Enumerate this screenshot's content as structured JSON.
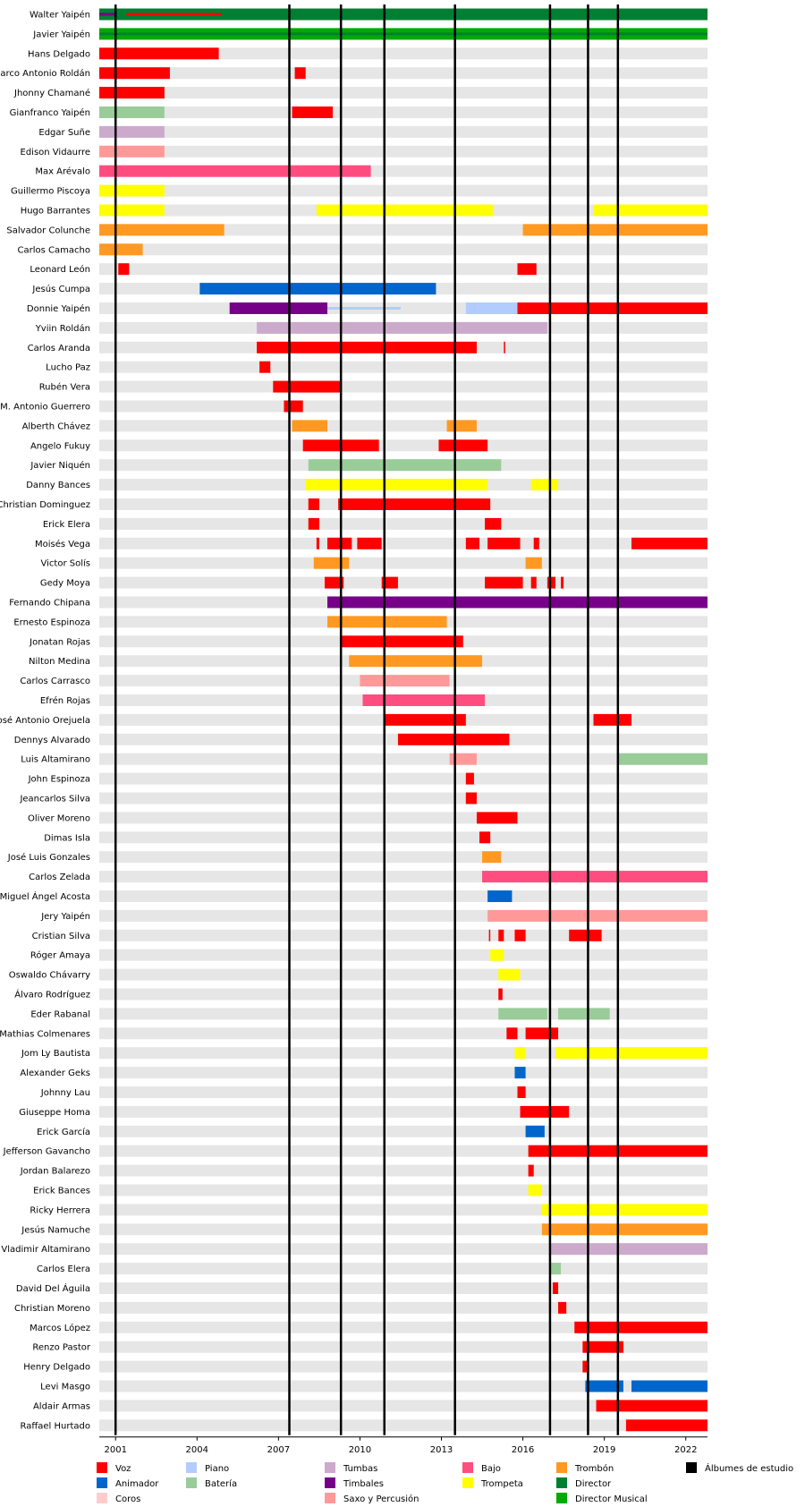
{
  "chart_data": {
    "type": "timeline",
    "title": "",
    "x_range": [
      2000.4,
      2022.8
    ],
    "x_ticks": [
      "2001",
      "2004",
      "2007",
      "2010",
      "2013",
      "2016",
      "2019",
      "2022"
    ],
    "album_lines": [
      2001,
      2007.4,
      2009.3,
      2010.9,
      2013.5,
      2017,
      2018.4,
      2019.5
    ],
    "colors": {
      "Voz": "#ff0000",
      "Animador": "#0066cc",
      "Coros": "#ffcccc",
      "Piano": "#b3ccff",
      "Bateria": "#99cc99",
      "Tumbas": "#ccaacc",
      "Timbales": "#770088",
      "Saxo": "#ff9999",
      "Bajo": "#ff4d80",
      "Trompeta": "#ffff00",
      "Trombon": "#ff9922",
      "Director": "#007f33",
      "DirectorMusical": "#00aa00",
      "Albumes": "#000000"
    },
    "legend": [
      {
        "key": "Voz",
        "label": "Voz"
      },
      {
        "key": "Animador",
        "label": "Animador"
      },
      {
        "key": "Coros",
        "label": "Coros"
      },
      {
        "key": "Piano",
        "label": "Piano"
      },
      {
        "key": "Bateria",
        "label": "Batería"
      },
      {
        "key": "Tumbas",
        "label": "Tumbas"
      },
      {
        "key": "Timbales",
        "label": "Timbales"
      },
      {
        "key": "Saxo",
        "label": "Saxo y Percusión"
      },
      {
        "key": "Bajo",
        "label": "Bajo"
      },
      {
        "key": "Trompeta",
        "label": "Trompeta"
      },
      {
        "key": "Trombon",
        "label": "Trombón"
      },
      {
        "key": "Director",
        "label": "Director"
      },
      {
        "key": "DirectorMusical",
        "label": "Director Musical"
      },
      {
        "key": "Albumes",
        "label": "Álbumes de estudio"
      }
    ],
    "members": [
      {
        "name": "Walter Yaipén",
        "bars": [
          {
            "r": "Director",
            "s": 2000.4,
            "e": 2022.8
          },
          {
            "r": "Timbales",
            "s": 2000.4,
            "e": 2001,
            "thin": true
          },
          {
            "r": "Voz",
            "s": 2001.4,
            "e": 2004.9,
            "thin": true
          }
        ]
      },
      {
        "name": "Javier Yaipén",
        "bars": [
          {
            "r": "DirectorMusical",
            "s": 2000.4,
            "e": 2022.8
          },
          {
            "r": "Director",
            "s": 2000.4,
            "e": 2022.8,
            "thin": true
          }
        ]
      },
      {
        "name": "Hans Delgado",
        "bars": [
          {
            "r": "Voz",
            "s": 2000.4,
            "e": 2004.8
          }
        ]
      },
      {
        "name": "Marco Antonio Roldán",
        "bars": [
          {
            "r": "Voz",
            "s": 2000.4,
            "e": 2003
          },
          {
            "r": "Voz",
            "s": 2007.6,
            "e": 2008
          }
        ]
      },
      {
        "name": "Jhonny Chamané",
        "bars": [
          {
            "r": "Voz",
            "s": 2000.4,
            "e": 2002.8
          }
        ]
      },
      {
        "name": "Gianfranco Yaipén",
        "bars": [
          {
            "r": "Bateria",
            "s": 2000.4,
            "e": 2002.8
          },
          {
            "r": "Voz",
            "s": 2007.5,
            "e": 2009
          }
        ]
      },
      {
        "name": "Edgar Suñe",
        "bars": [
          {
            "r": "Tumbas",
            "s": 2000.4,
            "e": 2002.8
          }
        ]
      },
      {
        "name": "Edison Vidaurre",
        "bars": [
          {
            "r": "Saxo",
            "s": 2000.4,
            "e": 2002.8
          }
        ]
      },
      {
        "name": "Max Arévalo",
        "bars": [
          {
            "r": "Bajo",
            "s": 2000.4,
            "e": 2010.4
          }
        ]
      },
      {
        "name": "Guillermo Piscoya",
        "bars": [
          {
            "r": "Trompeta",
            "s": 2000.4,
            "e": 2002.8
          }
        ]
      },
      {
        "name": "Hugo Barrantes",
        "bars": [
          {
            "r": "Trompeta",
            "s": 2000.4,
            "e": 2002.8
          },
          {
            "r": "Trompeta",
            "s": 2008.4,
            "e": 2014.9
          },
          {
            "r": "Trompeta",
            "s": 2018.6,
            "e": 2022.8
          }
        ]
      },
      {
        "name": "Salvador Colunche",
        "bars": [
          {
            "r": "Trombon",
            "s": 2000.4,
            "e": 2005
          },
          {
            "r": "Trombon",
            "s": 2016,
            "e": 2022.8
          }
        ]
      },
      {
        "name": "Carlos Camacho",
        "bars": [
          {
            "r": "Trombon",
            "s": 2000.4,
            "e": 2002
          }
        ]
      },
      {
        "name": "Leonard León",
        "bars": [
          {
            "r": "Voz",
            "s": 2001.1,
            "e": 2001.5
          },
          {
            "r": "Voz",
            "s": 2015.8,
            "e": 2016.5
          }
        ]
      },
      {
        "name": "Jesús Cumpa",
        "bars": [
          {
            "r": "Animador",
            "s": 2004.1,
            "e": 2012.8
          }
        ]
      },
      {
        "name": "Donnie Yaipén",
        "bars": [
          {
            "r": "Timbales",
            "s": 2005.2,
            "e": 2008.8
          },
          {
            "r": "Piano",
            "s": 2008.8,
            "e": 2011.5,
            "thin": true
          },
          {
            "r": "Piano",
            "s": 2013.9,
            "e": 2015.8
          },
          {
            "r": "Voz",
            "s": 2015.8,
            "e": 2022.8
          }
        ]
      },
      {
        "name": "Yviin Roldán",
        "bars": [
          {
            "r": "Tumbas",
            "s": 2006.2,
            "e": 2016.9
          }
        ]
      },
      {
        "name": "Carlos Aranda",
        "bars": [
          {
            "r": "Voz",
            "s": 2006.2,
            "e": 2014.3
          },
          {
            "r": "Voz",
            "s": 2015.3,
            "e": 2015.35
          }
        ]
      },
      {
        "name": "Lucho Paz",
        "bars": [
          {
            "r": "Voz",
            "s": 2006.3,
            "e": 2006.7
          }
        ]
      },
      {
        "name": "Rubén Vera",
        "bars": [
          {
            "r": "Voz",
            "s": 2006.8,
            "e": 2009.3
          }
        ]
      },
      {
        "name": "M. Antonio Guerrero",
        "bars": [
          {
            "r": "Voz",
            "s": 2007.2,
            "e": 2007.9
          }
        ]
      },
      {
        "name": "Alberth Chávez",
        "bars": [
          {
            "r": "Trombon",
            "s": 2007.5,
            "e": 2008.8
          },
          {
            "r": "Trombon",
            "s": 2013.2,
            "e": 2014.3
          }
        ]
      },
      {
        "name": "Angelo Fukuy",
        "bars": [
          {
            "r": "Voz",
            "s": 2007.9,
            "e": 2010.7
          },
          {
            "r": "Voz",
            "s": 2012.9,
            "e": 2014.7
          }
        ]
      },
      {
        "name": "Javier Niquén",
        "bars": [
          {
            "r": "Bateria",
            "s": 2008.1,
            "e": 2015.2
          }
        ]
      },
      {
        "name": "Danny Bances",
        "bars": [
          {
            "r": "Trompeta",
            "s": 2008,
            "e": 2014.7
          },
          {
            "r": "Trompeta",
            "s": 2016.3,
            "e": 2017.3
          }
        ]
      },
      {
        "name": "Christian Dominguez",
        "bars": [
          {
            "r": "Voz",
            "s": 2008.1,
            "e": 2008.5
          },
          {
            "r": "Voz",
            "s": 2009.2,
            "e": 2014.8
          }
        ]
      },
      {
        "name": "Erick Elera",
        "bars": [
          {
            "r": "Voz",
            "s": 2008.1,
            "e": 2008.5
          },
          {
            "r": "Voz",
            "s": 2014.6,
            "e": 2015.2
          }
        ]
      },
      {
        "name": "Moisés Vega",
        "bars": [
          {
            "r": "Voz",
            "s": 2008.4,
            "e": 2008.5
          },
          {
            "r": "Voz",
            "s": 2008.8,
            "e": 2009.7
          },
          {
            "r": "Voz",
            "s": 2009.9,
            "e": 2010.8
          },
          {
            "r": "Voz",
            "s": 2013.9,
            "e": 2014.4
          },
          {
            "r": "Voz",
            "s": 2014.7,
            "e": 2015.9
          },
          {
            "r": "Voz",
            "s": 2016.4,
            "e": 2016.6
          },
          {
            "r": "Voz",
            "s": 2020,
            "e": 2022.8
          }
        ]
      },
      {
        "name": "Victor Solís",
        "bars": [
          {
            "r": "Trombon",
            "s": 2008.3,
            "e": 2009.6
          },
          {
            "r": "Trombon",
            "s": 2016.1,
            "e": 2016.7
          }
        ]
      },
      {
        "name": "Gedy Moya",
        "bars": [
          {
            "r": "Voz",
            "s": 2008.7,
            "e": 2009.4
          },
          {
            "r": "Voz",
            "s": 2010.8,
            "e": 2011.4
          },
          {
            "r": "Voz",
            "s": 2014.6,
            "e": 2016
          },
          {
            "r": "Voz",
            "s": 2016.3,
            "e": 2016.5
          },
          {
            "r": "Voz",
            "s": 2016.9,
            "e": 2017.2
          },
          {
            "r": "Voz",
            "s": 2017.4,
            "e": 2017.5
          }
        ]
      },
      {
        "name": "Fernando Chipana",
        "bars": [
          {
            "r": "Timbales",
            "s": 2008.8,
            "e": 2022.8
          }
        ]
      },
      {
        "name": "Ernesto Espinoza",
        "bars": [
          {
            "r": "Trombon",
            "s": 2008.8,
            "e": 2013.2
          }
        ]
      },
      {
        "name": "Jonatan Rojas",
        "bars": [
          {
            "r": "Voz",
            "s": 2009.3,
            "e": 2013.8
          }
        ]
      },
      {
        "name": "Nilton Medina",
        "bars": [
          {
            "r": "Trombon",
            "s": 2009.6,
            "e": 2014.5
          }
        ]
      },
      {
        "name": "Carlos Carrasco",
        "bars": [
          {
            "r": "Saxo",
            "s": 2010,
            "e": 2013.3
          }
        ]
      },
      {
        "name": "Efrén Rojas",
        "bars": [
          {
            "r": "Bajo",
            "s": 2010.1,
            "e": 2014.6
          }
        ]
      },
      {
        "name": "José Antonio Orejuela",
        "bars": [
          {
            "r": "Voz",
            "s": 2010.9,
            "e": 2013.9
          },
          {
            "r": "Voz",
            "s": 2018.6,
            "e": 2020
          }
        ]
      },
      {
        "name": "Dennys Alvarado",
        "bars": [
          {
            "r": "Voz",
            "s": 2011.4,
            "e": 2015.5
          }
        ]
      },
      {
        "name": "Luis Altamirano",
        "bars": [
          {
            "r": "Saxo",
            "s": 2013.3,
            "e": 2014.3
          },
          {
            "r": "Bateria",
            "s": 2019.5,
            "e": 2022.8
          }
        ]
      },
      {
        "name": "John Espinoza",
        "bars": [
          {
            "r": "Voz",
            "s": 2013.9,
            "e": 2014.2
          }
        ]
      },
      {
        "name": "Jeancarlos Silva",
        "bars": [
          {
            "r": "Voz",
            "s": 2013.9,
            "e": 2014.3
          }
        ]
      },
      {
        "name": "Oliver Moreno",
        "bars": [
          {
            "r": "Voz",
            "s": 2014.3,
            "e": 2015.8
          }
        ]
      },
      {
        "name": "Dimas Isla",
        "bars": [
          {
            "r": "Voz",
            "s": 2014.4,
            "e": 2014.8
          }
        ]
      },
      {
        "name": "José Luis Gonzales",
        "bars": [
          {
            "r": "Trombon",
            "s": 2014.5,
            "e": 2015.2
          }
        ]
      },
      {
        "name": "Carlos Zelada",
        "bars": [
          {
            "r": "Bajo",
            "s": 2014.5,
            "e": 2022.8
          }
        ]
      },
      {
        "name": "Miguel Ángel Acosta",
        "bars": [
          {
            "r": "Animador",
            "s": 2014.7,
            "e": 2015.6
          }
        ]
      },
      {
        "name": "Jery Yaipén",
        "bars": [
          {
            "r": "Saxo",
            "s": 2014.7,
            "e": 2022.8
          }
        ]
      },
      {
        "name": "Cristian Silva",
        "bars": [
          {
            "r": "Voz",
            "s": 2014.75,
            "e": 2014.8
          },
          {
            "r": "Voz",
            "s": 2015.1,
            "e": 2015.3
          },
          {
            "r": "Voz",
            "s": 2015.7,
            "e": 2016.1
          },
          {
            "r": "Voz",
            "s": 2017.7,
            "e": 2018.9
          }
        ]
      },
      {
        "name": "Róger Amaya",
        "bars": [
          {
            "r": "Trompeta",
            "s": 2014.8,
            "e": 2015.3
          }
        ]
      },
      {
        "name": "Oswaldo Chávarry",
        "bars": [
          {
            "r": "Trompeta",
            "s": 2015.1,
            "e": 2015.9
          }
        ]
      },
      {
        "name": "Álvaro Rodríguez",
        "bars": [
          {
            "r": "Voz",
            "s": 2015.1,
            "e": 2015.25
          }
        ]
      },
      {
        "name": "Eder Rabanal",
        "bars": [
          {
            "r": "Bateria",
            "s": 2015.1,
            "e": 2016.9
          },
          {
            "r": "Bateria",
            "s": 2017.3,
            "e": 2019.2
          }
        ]
      },
      {
        "name": "Mathias Colmenares",
        "bars": [
          {
            "r": "Voz",
            "s": 2015.4,
            "e": 2015.8
          },
          {
            "r": "Voz",
            "s": 2016.1,
            "e": 2017.3
          }
        ]
      },
      {
        "name": "Jom Ly Bautista",
        "bars": [
          {
            "r": "Trompeta",
            "s": 2015.7,
            "e": 2016.1
          },
          {
            "r": "Trompeta",
            "s": 2017.2,
            "e": 2022.8
          }
        ]
      },
      {
        "name": "Alexander Geks",
        "bars": [
          {
            "r": "Animador",
            "s": 2015.7,
            "e": 2016.1
          }
        ]
      },
      {
        "name": "Johnny Lau",
        "bars": [
          {
            "r": "Voz",
            "s": 2015.8,
            "e": 2016.1
          }
        ]
      },
      {
        "name": "Giuseppe Homa",
        "bars": [
          {
            "r": "Voz",
            "s": 2015.9,
            "e": 2017.7
          }
        ]
      },
      {
        "name": "Erick García",
        "bars": [
          {
            "r": "Animador",
            "s": 2016.1,
            "e": 2016.8
          }
        ]
      },
      {
        "name": "Jefferson Gavancho",
        "bars": [
          {
            "r": "Voz",
            "s": 2016.2,
            "e": 2022.8
          }
        ]
      },
      {
        "name": "Jordan Balarezo",
        "bars": [
          {
            "r": "Voz",
            "s": 2016.2,
            "e": 2016.4
          }
        ]
      },
      {
        "name": "Erick Bances",
        "bars": [
          {
            "r": "Trompeta",
            "s": 2016.2,
            "e": 2016.7
          }
        ]
      },
      {
        "name": "Ricky Herrera",
        "bars": [
          {
            "r": "Trompeta",
            "s": 2016.7,
            "e": 2022.8
          }
        ]
      },
      {
        "name": "Jesús Namuche",
        "bars": [
          {
            "r": "Trombon",
            "s": 2016.7,
            "e": 2022.8
          }
        ]
      },
      {
        "name": "Vladimir Altamirano",
        "bars": [
          {
            "r": "Tumbas",
            "s": 2017,
            "e": 2022.8
          }
        ]
      },
      {
        "name": "Carlos Elera",
        "bars": [
          {
            "r": "Bateria",
            "s": 2017,
            "e": 2017.4
          }
        ]
      },
      {
        "name": "David Del Águila",
        "bars": [
          {
            "r": "Voz",
            "s": 2017.1,
            "e": 2017.3
          }
        ]
      },
      {
        "name": "Christian Moreno",
        "bars": [
          {
            "r": "Voz",
            "s": 2017.3,
            "e": 2017.6
          }
        ]
      },
      {
        "name": "Marcos López",
        "bars": [
          {
            "r": "Voz",
            "s": 2017.9,
            "e": 2022.8
          }
        ]
      },
      {
        "name": "Renzo Pastor",
        "bars": [
          {
            "r": "Voz",
            "s": 2018.2,
            "e": 2019.7
          }
        ]
      },
      {
        "name": "Henry Delgado",
        "bars": [
          {
            "r": "Voz",
            "s": 2018.2,
            "e": 2018.4
          }
        ]
      },
      {
        "name": "Levi Masgo",
        "bars": [
          {
            "r": "Animador",
            "s": 2018.3,
            "e": 2019.7
          },
          {
            "r": "Animador",
            "s": 2020,
            "e": 2022.8
          }
        ]
      },
      {
        "name": "Aldair Armas",
        "bars": [
          {
            "r": "Voz",
            "s": 2018.7,
            "e": 2022.8
          }
        ]
      },
      {
        "name": "Raffael Hurtado",
        "bars": [
          {
            "r": "Voz",
            "s": 2019.8,
            "e": 2022.8
          }
        ]
      }
    ]
  }
}
